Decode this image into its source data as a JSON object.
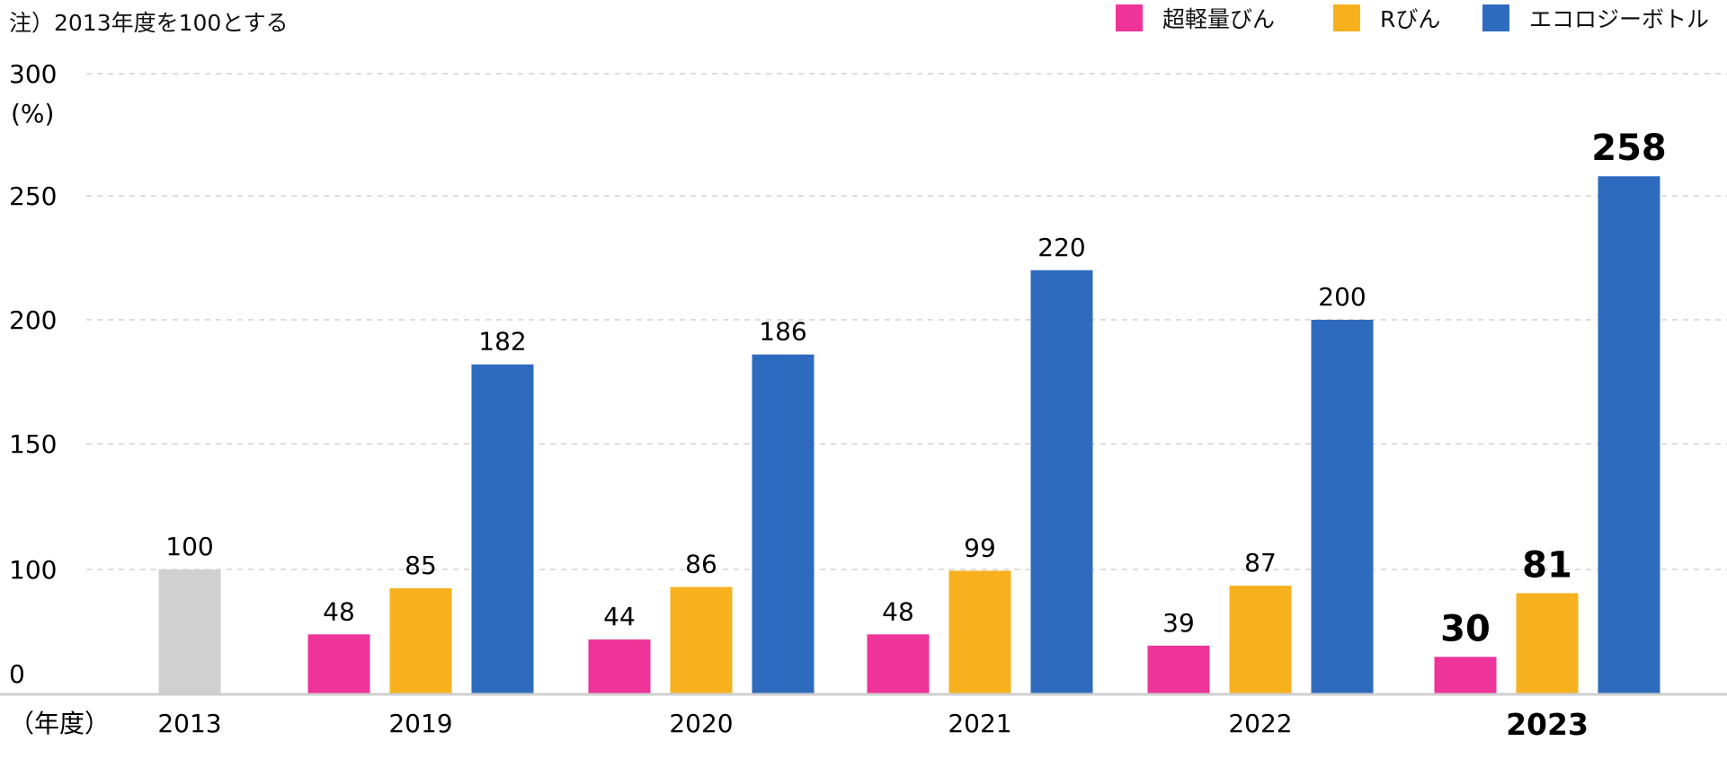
{
  "note": "注）2013年度を100とする",
  "colors": {
    "ultra_light": "#EE3399",
    "r_bottle": "#F7B11F",
    "eco_bottle": "#2E6BBE",
    "base": "#D0D0D0",
    "grid": "#C9C9C9",
    "axis": "#CFCFCF"
  },
  "chart_data": {
    "type": "bar",
    "ylabel": "(%)",
    "xlabel": "（年度）",
    "ylim": [
      0,
      300
    ],
    "yticks": [
      "0",
      "100",
      "150",
      "200",
      "250",
      "300"
    ],
    "grid": true,
    "legend_position": "top-right",
    "legend": [
      "超軽量びん",
      "Rびん",
      "エコロジーボトル"
    ],
    "categories": [
      "2013",
      "2019",
      "2020",
      "2021",
      "2022",
      "2023"
    ],
    "highlight_category": "2023",
    "base": {
      "category": "2013",
      "value": 100,
      "label": "100"
    },
    "series": [
      {
        "name": "超軽量びん",
        "values": [
          null,
          48,
          44,
          48,
          39,
          30
        ],
        "labels": [
          "",
          "48",
          "44",
          "48",
          "39",
          "30"
        ]
      },
      {
        "name": "Rびん",
        "values": [
          null,
          85,
          86,
          99,
          87,
          81
        ],
        "labels": [
          "",
          "85",
          "86",
          "99",
          "87",
          "81"
        ]
      },
      {
        "name": "エコロジーボトル",
        "values": [
          null,
          182,
          186,
          220,
          200,
          258
        ],
        "labels": [
          "",
          "182",
          "186",
          "220",
          "200",
          "258"
        ]
      }
    ]
  }
}
